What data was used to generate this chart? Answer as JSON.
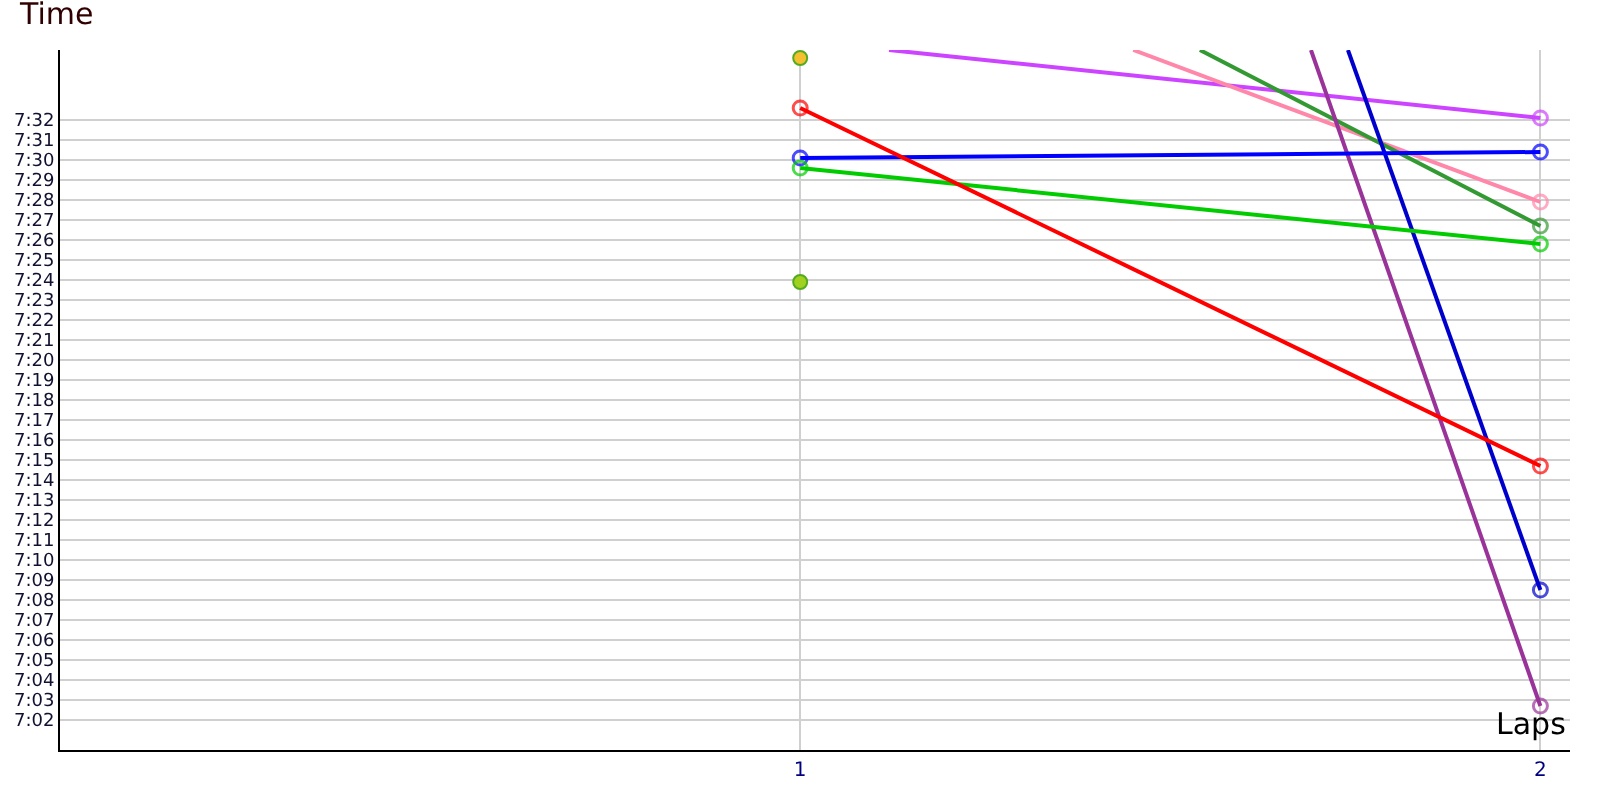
{
  "chart_data": {
    "type": "line",
    "xlabel": "Laps",
    "ylabel": "Time",
    "x": [
      1,
      2
    ],
    "xlim": [
      0,
      2.04
    ],
    "xticks": [
      1,
      2
    ],
    "ylim": [
      420.5,
      455.5
    ],
    "yticks": [
      {
        "value": 422,
        "label": "7:02"
      },
      {
        "value": 423,
        "label": "7:03"
      },
      {
        "value": 424,
        "label": "7:04"
      },
      {
        "value": 425,
        "label": "7:05"
      },
      {
        "value": 426,
        "label": "7:06"
      },
      {
        "value": 427,
        "label": "7:07"
      },
      {
        "value": 428,
        "label": "7:08"
      },
      {
        "value": 429,
        "label": "7:09"
      },
      {
        "value": 430,
        "label": "7:10"
      },
      {
        "value": 431,
        "label": "7:11"
      },
      {
        "value": 432,
        "label": "7:12"
      },
      {
        "value": 433,
        "label": "7:13"
      },
      {
        "value": 434,
        "label": "7:14"
      },
      {
        "value": 435,
        "label": "7:15"
      },
      {
        "value": 436,
        "label": "7:16"
      },
      {
        "value": 437,
        "label": "7:17"
      },
      {
        "value": 438,
        "label": "7:18"
      },
      {
        "value": 439,
        "label": "7:19"
      },
      {
        "value": 440,
        "label": "7:20"
      },
      {
        "value": 441,
        "label": "7:21"
      },
      {
        "value": 442,
        "label": "7:22"
      },
      {
        "value": 443,
        "label": "7:23"
      },
      {
        "value": 444,
        "label": "7:24"
      },
      {
        "value": 445,
        "label": "7:25"
      },
      {
        "value": 446,
        "label": "7:26"
      },
      {
        "value": 447,
        "label": "7:27"
      },
      {
        "value": 448,
        "label": "7:28"
      },
      {
        "value": 449,
        "label": "7:29"
      },
      {
        "value": 450,
        "label": "7:30"
      },
      {
        "value": 451,
        "label": "7:31"
      },
      {
        "value": 452,
        "label": "7:32"
      }
    ],
    "grid": true,
    "marker": "circle",
    "line_style": "solid",
    "series": [
      {
        "color": "#cc44ff",
        "x": [
          1.12,
          2
        ],
        "values": [
          455.5,
          452.1
        ]
      },
      {
        "color": "#ff88aa",
        "x": [
          1.45,
          2
        ],
        "values": [
          455.5,
          447.9
        ]
      },
      {
        "color": "#339933",
        "x": [
          1.54,
          2
        ],
        "values": [
          455.5,
          446.7
        ]
      },
      {
        "color": "#993399",
        "x": [
          1.69,
          2
        ],
        "values": [
          455.5,
          422.7
        ]
      },
      {
        "color": "#0000cc",
        "x": [
          1.74,
          2
        ],
        "values": [
          455.5,
          428.5
        ]
      },
      {
        "color": "#0000ff",
        "values": [
          450.1,
          450.4
        ]
      },
      {
        "color": "#00cc00",
        "values": [
          449.6,
          445.8
        ]
      },
      {
        "color": "#ff0000",
        "values": [
          452.6,
          434.7
        ]
      },
      {
        "type": "scatter",
        "color": "#f5c030",
        "values": [
          455.1,
          null
        ]
      },
      {
        "type": "scatter",
        "color": "#a0d020",
        "values": [
          443.9,
          null
        ]
      }
    ]
  }
}
